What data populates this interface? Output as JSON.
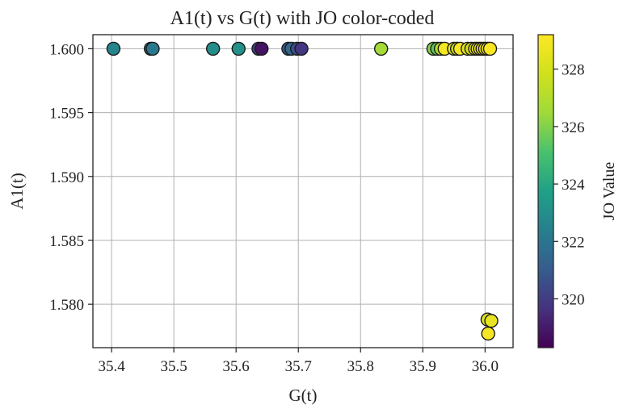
{
  "chart_data": {
    "type": "scatter",
    "title": "A1(t) vs G(t) with JO color-coded",
    "xlabel": "G(t)",
    "ylabel": "A1(t)",
    "xlim": [
      35.37,
      36.045
    ],
    "ylim": [
      1.5766,
      1.6011
    ],
    "xticks": [
      35.4,
      35.5,
      35.6,
      35.7,
      35.8,
      35.9,
      36.0
    ],
    "xtick_labels": [
      "35.4",
      "35.5",
      "35.6",
      "35.7",
      "35.8",
      "35.9",
      "36.0"
    ],
    "yticks": [
      1.58,
      1.585,
      1.59,
      1.595,
      1.6
    ],
    "ytick_labels": [
      "1.580",
      "1.585",
      "1.590",
      "1.595",
      "1.600"
    ],
    "grid": true,
    "colorbar": {
      "label": "JO Value",
      "colormap": "viridis",
      "range": [
        318.3,
        329.2
      ],
      "ticks": [
        320,
        322,
        324,
        326,
        328
      ],
      "tick_labels": [
        "320",
        "322",
        "324",
        "326",
        "328"
      ]
    },
    "points": [
      {
        "x": 35.403,
        "y": 1.6,
        "c": 322.6
      },
      {
        "x": 35.463,
        "y": 1.6,
        "c": 321.9
      },
      {
        "x": 35.466,
        "y": 1.6,
        "c": 322.1
      },
      {
        "x": 35.563,
        "y": 1.6,
        "c": 322.9
      },
      {
        "x": 35.604,
        "y": 1.6,
        "c": 323.1
      },
      {
        "x": 35.636,
        "y": 1.6,
        "c": 320.2
      },
      {
        "x": 35.641,
        "y": 1.6,
        "c": 318.8
      },
      {
        "x": 35.684,
        "y": 1.6,
        "c": 320.9
      },
      {
        "x": 35.689,
        "y": 1.6,
        "c": 321.5
      },
      {
        "x": 35.698,
        "y": 1.6,
        "c": 320.6
      },
      {
        "x": 35.705,
        "y": 1.6,
        "c": 319.8
      },
      {
        "x": 35.833,
        "y": 1.6,
        "c": 326.6
      },
      {
        "x": 35.917,
        "y": 1.6,
        "c": 326.1
      },
      {
        "x": 35.923,
        "y": 1.6,
        "c": 325.4
      },
      {
        "x": 35.929,
        "y": 1.6,
        "c": 327.2
      },
      {
        "x": 35.935,
        "y": 1.6,
        "c": 328.9
      },
      {
        "x": 35.95,
        "y": 1.6,
        "c": 328.6
      },
      {
        "x": 35.955,
        "y": 1.6,
        "c": 327.6
      },
      {
        "x": 35.96,
        "y": 1.6,
        "c": 329.0
      },
      {
        "x": 35.972,
        "y": 1.6,
        "c": 328.4
      },
      {
        "x": 35.978,
        "y": 1.6,
        "c": 327.9
      },
      {
        "x": 35.984,
        "y": 1.6,
        "c": 328.7
      },
      {
        "x": 35.988,
        "y": 1.6,
        "c": 328.8
      },
      {
        "x": 35.992,
        "y": 1.6,
        "c": 328.2
      },
      {
        "x": 35.996,
        "y": 1.6,
        "c": 329.0
      },
      {
        "x": 36.0,
        "y": 1.6,
        "c": 328.5
      },
      {
        "x": 36.004,
        "y": 1.6,
        "c": 328.9
      },
      {
        "x": 36.008,
        "y": 1.6,
        "c": 329.1
      },
      {
        "x": 36.004,
        "y": 1.5788,
        "c": 328.3
      },
      {
        "x": 36.01,
        "y": 1.5787,
        "c": 328.6
      },
      {
        "x": 36.005,
        "y": 1.5777,
        "c": 329.0
      }
    ]
  }
}
